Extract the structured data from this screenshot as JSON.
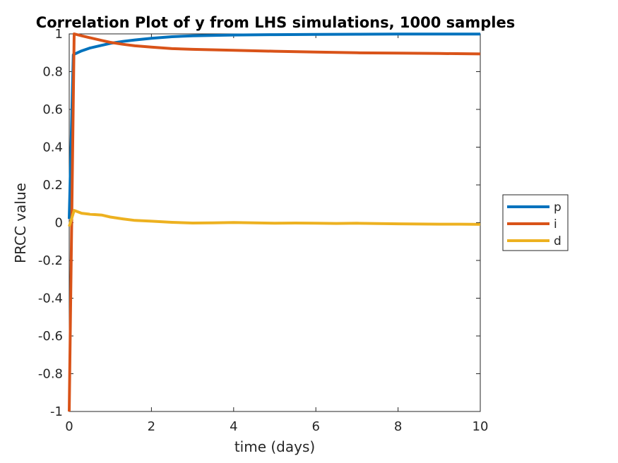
{
  "chart_data": {
    "type": "line",
    "title": "Correlation Plot of y from LHS simulations, 1000 samples",
    "xlabel": "time (days)",
    "ylabel": "PRCC value",
    "xlim": [
      0,
      10
    ],
    "ylim": [
      -1,
      1
    ],
    "xticks": [
      0,
      2,
      4,
      6,
      8,
      10
    ],
    "yticks": [
      -1,
      -0.8,
      -0.6,
      -0.4,
      -0.2,
      0,
      0.2,
      0.4,
      0.6,
      0.8,
      1
    ],
    "xtick_labels": [
      "0",
      "2",
      "4",
      "6",
      "8",
      "10"
    ],
    "ytick_labels": [
      "-1",
      "-0.8",
      "-0.6",
      "-0.4",
      "-0.2",
      "0",
      "0.2",
      "0.4",
      "0.6",
      "0.8",
      "1"
    ],
    "grid": false,
    "legend_position": "right",
    "series": [
      {
        "name": "p",
        "color": "#0072BD",
        "x": [
          0,
          0.1,
          0.3,
          0.5,
          0.8,
          1,
          1.3,
          1.6,
          2,
          2.5,
          3,
          4,
          5,
          6,
          7,
          8,
          9,
          10
        ],
        "y": [
          0.02,
          0.89,
          0.91,
          0.925,
          0.94,
          0.95,
          0.96,
          0.968,
          0.977,
          0.985,
          0.99,
          0.994,
          0.996,
          0.997,
          0.998,
          0.999,
          0.999,
          0.999
        ]
      },
      {
        "name": "i",
        "color": "#D95319",
        "x": [
          0,
          0.12,
          0.3,
          0.5,
          0.8,
          1,
          1.3,
          1.6,
          2,
          2.5,
          3,
          4,
          5,
          6,
          7,
          8,
          9,
          10
        ],
        "y": [
          -1,
          1.0,
          0.99,
          0.98,
          0.965,
          0.955,
          0.945,
          0.937,
          0.93,
          0.922,
          0.918,
          0.913,
          0.908,
          0.904,
          0.9,
          0.898,
          0.896,
          0.894
        ]
      },
      {
        "name": "d",
        "color": "#EDB120",
        "x": [
          0,
          0.12,
          0.3,
          0.5,
          0.8,
          1,
          1.3,
          1.6,
          2,
          2.5,
          3,
          3.5,
          4,
          4.5,
          5,
          5.5,
          6,
          6.5,
          7,
          7.5,
          8,
          8.5,
          9,
          9.5,
          10
        ],
        "y": [
          -0.02,
          0.065,
          0.05,
          0.045,
          0.04,
          0.03,
          0.02,
          0.012,
          0.008,
          0.002,
          -0.002,
          -0.001,
          0.001,
          -0.001,
          -0.003,
          -0.002,
          -0.003,
          -0.004,
          -0.003,
          -0.005,
          -0.006,
          -0.007,
          -0.008,
          -0.008,
          -0.009
        ]
      }
    ]
  }
}
